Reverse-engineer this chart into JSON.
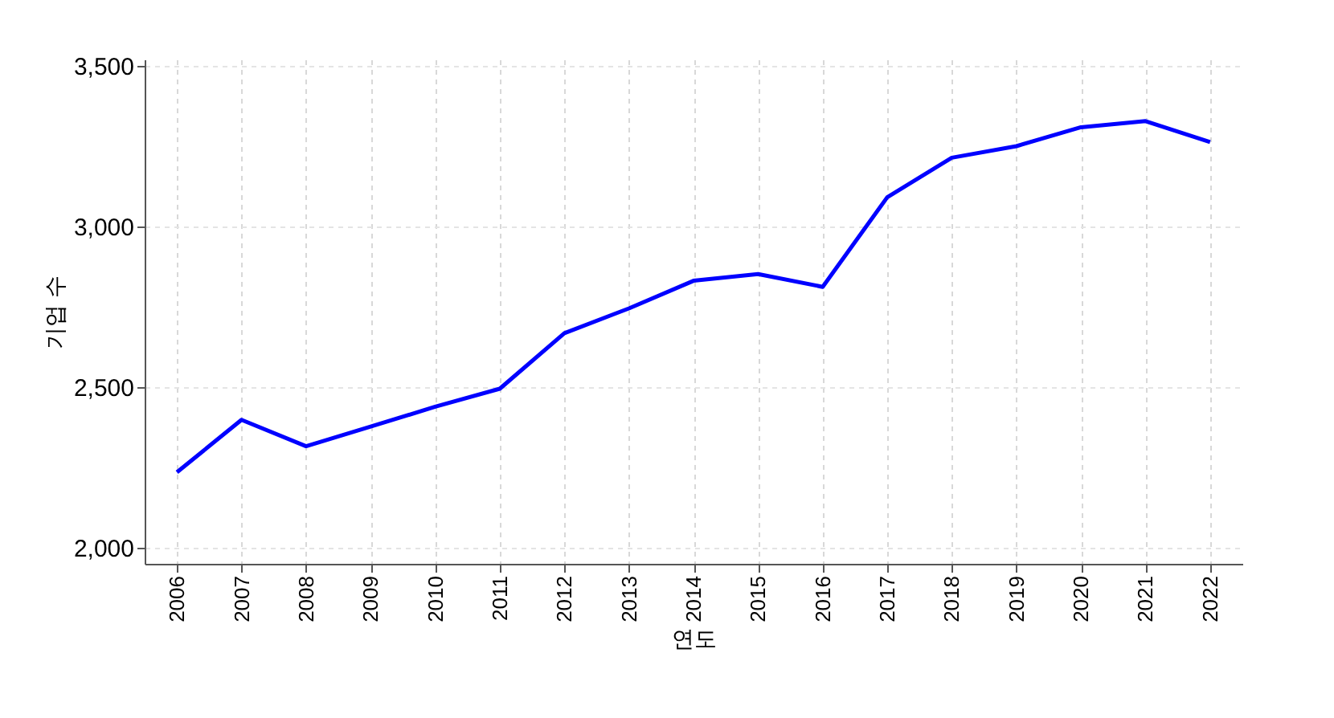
{
  "chart_data": {
    "type": "line",
    "xlabel": "연도",
    "ylabel": "기업 수",
    "categories": [
      "2006",
      "2007",
      "2008",
      "2009",
      "2010",
      "2011",
      "2012",
      "2013",
      "2014",
      "2015",
      "2016",
      "2017",
      "2018",
      "2019",
      "2020",
      "2021",
      "2022"
    ],
    "series": [
      {
        "color": "#0000ff",
        "values": [
          2235,
          2398,
          2316,
          2377,
          2439,
          2495,
          2668,
          2745,
          2831,
          2852,
          2812,
          3091,
          3214,
          3250,
          3309,
          3328,
          3263
        ]
      }
    ],
    "ylim": [
      1950,
      3520
    ],
    "yticks": [
      {
        "value": 2000,
        "label": "2,000"
      },
      {
        "value": 2500,
        "label": "2,500"
      },
      {
        "value": 3000,
        "label": "3,000"
      },
      {
        "value": 3500,
        "label": "3,500"
      }
    ],
    "grid": true
  }
}
